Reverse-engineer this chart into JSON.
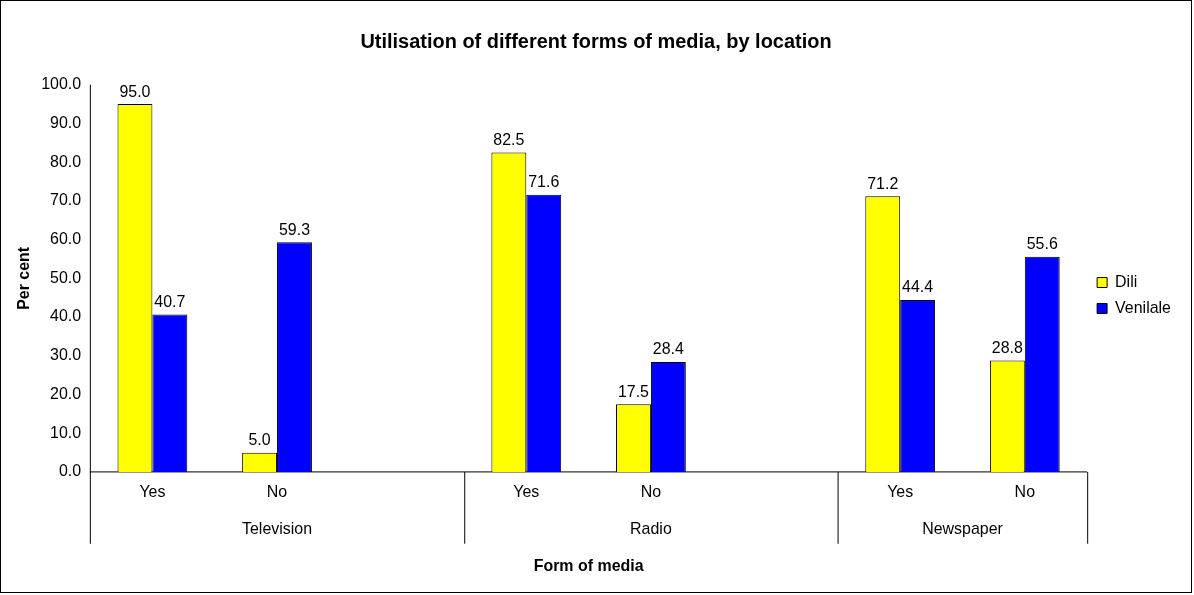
{
  "chart_data": {
    "type": "bar",
    "title": "Utilisation of different forms of media, by location",
    "xlabel": "Form of media",
    "ylabel": "Per cent",
    "categories": [
      "Yes",
      "No",
      null,
      "Yes",
      "No",
      null,
      "Yes",
      "No"
    ],
    "series": [
      {
        "name": "Dili",
        "color": "#ffff00",
        "values": [
          95.0,
          5.0,
          null,
          82.5,
          17.5,
          null,
          71.2,
          28.8
        ],
        "value_labels": [
          "95.0",
          "5.0",
          null,
          "82.5",
          "17.5",
          null,
          "71.2",
          "28.8"
        ]
      },
      {
        "name": "Venilale",
        "color": "#0000ff",
        "values": [
          40.7,
          59.3,
          null,
          71.6,
          28.4,
          null,
          44.4,
          55.6
        ],
        "value_labels": [
          "40.7",
          "59.3",
          null,
          "71.6",
          "28.4",
          null,
          "44.4",
          "55.6"
        ]
      }
    ],
    "annotations": [
      "Television",
      "Radio",
      "Newspaper"
    ],
    "ylim": [
      0,
      100
    ],
    "yticks": [
      {
        "value": 0,
        "label": "0.0"
      },
      {
        "value": 10,
        "label": "10.0"
      },
      {
        "value": 20,
        "label": "20.0"
      },
      {
        "value": 30,
        "label": "30.0"
      },
      {
        "value": 40,
        "label": "40.0"
      },
      {
        "value": 50,
        "label": "50.0"
      },
      {
        "value": 60,
        "label": "60.0"
      },
      {
        "value": 70,
        "label": "70.0"
      },
      {
        "value": 80,
        "label": "80.0"
      },
      {
        "value": 90,
        "label": "90.0"
      },
      {
        "value": 100,
        "label": "100.0"
      }
    ],
    "grid": false,
    "legend": "right"
  }
}
